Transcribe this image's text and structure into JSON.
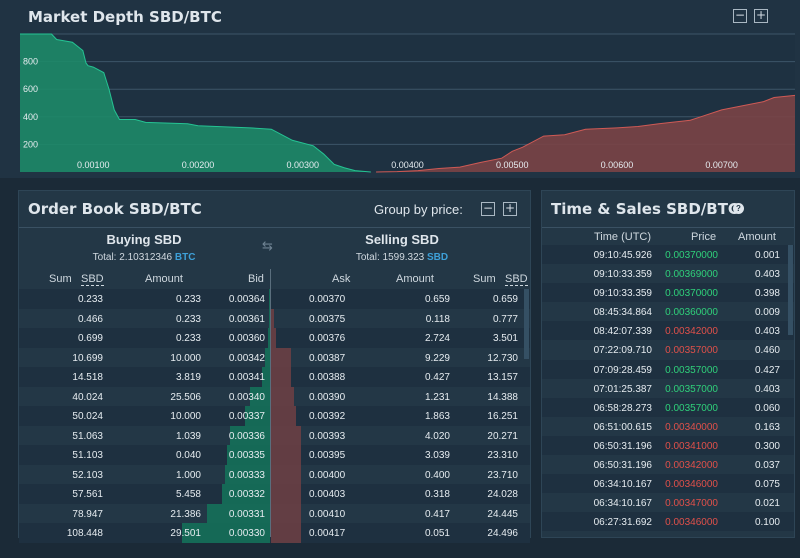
{
  "depth": {
    "title": "Market Depth SBD/BTC",
    "y_ticks": [
      "800",
      "600",
      "400",
      "200"
    ],
    "x_ticks": [
      "0.00100",
      "0.00200",
      "0.00300",
      "0.00400",
      "0.00500",
      "0.00600",
      "0.00700"
    ],
    "colors": {
      "bid": "#1d8a68",
      "ask": "#7a4446",
      "bid_line": "#25c393",
      "ask_line": "#cf5a55"
    },
    "chart_data": {
      "type": "area",
      "xlim": [
        0.0003,
        0.0077
      ],
      "ylim": [
        0,
        1000
      ],
      "series": [
        {
          "name": "Bids",
          "points": [
            [
              0.0003,
              1000
            ],
            [
              0.0006,
              1000
            ],
            [
              0.00065,
              960
            ],
            [
              0.0008,
              940
            ],
            [
              0.00085,
              910
            ],
            [
              0.0009,
              880
            ],
            [
              0.00093,
              790
            ],
            [
              0.00095,
              770
            ],
            [
              0.001,
              760
            ],
            [
              0.0011,
              720
            ],
            [
              0.00115,
              600
            ],
            [
              0.0012,
              450
            ],
            [
              0.00125,
              380
            ],
            [
              0.0014,
              380
            ],
            [
              0.0015,
              360
            ],
            [
              0.0019,
              350
            ],
            [
              0.002,
              335
            ],
            [
              0.0025,
              320
            ],
            [
              0.0027,
              310
            ],
            [
              0.0029,
              230
            ],
            [
              0.0031,
              190
            ],
            [
              0.0032,
              130
            ],
            [
              0.0033,
              55
            ],
            [
              0.0034,
              30
            ],
            [
              0.0035,
              10
            ],
            [
              0.00365,
              0
            ]
          ]
        },
        {
          "name": "Asks",
          "points": [
            [
              0.0037,
              0
            ],
            [
              0.0039,
              3
            ],
            [
              0.0041,
              10
            ],
            [
              0.0043,
              25
            ],
            [
              0.0045,
              35
            ],
            [
              0.0047,
              70
            ],
            [
              0.0049,
              100
            ],
            [
              0.005,
              150
            ],
            [
              0.0051,
              180
            ],
            [
              0.0053,
              260
            ],
            [
              0.0055,
              270
            ],
            [
              0.0057,
              310
            ],
            [
              0.006,
              320
            ],
            [
              0.0062,
              330
            ],
            [
              0.0064,
              350
            ],
            [
              0.0067,
              375
            ],
            [
              0.0068,
              400
            ],
            [
              0.007,
              450
            ],
            [
              0.0072,
              480
            ],
            [
              0.0074,
              510
            ],
            [
              0.0075,
              540
            ],
            [
              0.0077,
              555
            ]
          ]
        }
      ]
    }
  },
  "orderbook": {
    "title": "Order Book SBD/BTC",
    "group_label": "Group by price:",
    "buy": {
      "heading": "Buying SBD",
      "total_label": "Total: 2.10312346",
      "total_unit": "BTC"
    },
    "sell": {
      "heading": "Selling SBD",
      "total_label": "Total: 1599.323",
      "total_unit": "SBD"
    },
    "cols": {
      "sum": "Sum",
      "sbd": "SBD",
      "amount": "Amount",
      "bid": "Bid",
      "ask": "Ask"
    },
    "bids": [
      {
        "sum": "0.233",
        "amount": "0.233",
        "price": "0.00364",
        "depth": 0.002
      },
      {
        "sum": "0.466",
        "amount": "0.233",
        "price": "0.00361",
        "depth": 0.004
      },
      {
        "sum": "0.699",
        "amount": "0.233",
        "price": "0.00360",
        "depth": 0.006
      },
      {
        "sum": "10.699",
        "amount": "10.000",
        "price": "0.00342",
        "depth": 0.02
      },
      {
        "sum": "14.518",
        "amount": "3.819",
        "price": "0.00341",
        "depth": 0.03
      },
      {
        "sum": "40.024",
        "amount": "25.506",
        "price": "0.00340",
        "depth": 0.08
      },
      {
        "sum": "50.024",
        "amount": "10.000",
        "price": "0.00337",
        "depth": 0.1
      },
      {
        "sum": "51.063",
        "amount": "1.039",
        "price": "0.00336",
        "depth": 0.16
      },
      {
        "sum": "51.103",
        "amount": "0.040",
        "price": "0.00335",
        "depth": 0.17
      },
      {
        "sum": "52.103",
        "amount": "1.000",
        "price": "0.00333",
        "depth": 0.18
      },
      {
        "sum": "57.561",
        "amount": "5.458",
        "price": "0.00332",
        "depth": 0.19
      },
      {
        "sum": "78.947",
        "amount": "21.386",
        "price": "0.00331",
        "depth": 0.25
      },
      {
        "sum": "108.448",
        "amount": "29.501",
        "price": "0.00330",
        "depth": 0.35
      }
    ],
    "asks": [
      {
        "price": "0.00370",
        "amount": "0.659",
        "sum": "0.659",
        "depth": 0.0
      },
      {
        "price": "0.00375",
        "amount": "0.118",
        "sum": "0.777",
        "depth": 0.01
      },
      {
        "price": "0.00376",
        "amount": "2.724",
        "sum": "3.501",
        "depth": 0.02
      },
      {
        "price": "0.00387",
        "amount": "9.229",
        "sum": "12.730",
        "depth": 0.08
      },
      {
        "price": "0.00388",
        "amount": "0.427",
        "sum": "13.157",
        "depth": 0.08
      },
      {
        "price": "0.00390",
        "amount": "1.231",
        "sum": "14.388",
        "depth": 0.09
      },
      {
        "price": "0.00392",
        "amount": "1.863",
        "sum": "16.251",
        "depth": 0.1
      },
      {
        "price": "0.00393",
        "amount": "4.020",
        "sum": "20.271",
        "depth": 0.12
      },
      {
        "price": "0.00395",
        "amount": "3.039",
        "sum": "23.310",
        "depth": 0.12
      },
      {
        "price": "0.00400",
        "amount": "0.400",
        "sum": "23.710",
        "depth": 0.12
      },
      {
        "price": "0.00403",
        "amount": "0.318",
        "sum": "24.028",
        "depth": 0.12
      },
      {
        "price": "0.00410",
        "amount": "0.417",
        "sum": "24.445",
        "depth": 0.12
      },
      {
        "price": "0.00417",
        "amount": "0.051",
        "sum": "24.496",
        "depth": 0.12
      }
    ]
  },
  "sales": {
    "title": "Time & Sales SBD/BTC",
    "cols": {
      "time": "Time (UTC)",
      "price": "Price",
      "amount": "Amount"
    },
    "rows": [
      {
        "time": "09:10:45.926",
        "price": "0.00370000",
        "amount": "0.001",
        "dir": "up"
      },
      {
        "time": "09:10:33.359",
        "price": "0.00369000",
        "amount": "0.403",
        "dir": "up"
      },
      {
        "time": "09:10:33.359",
        "price": "0.00370000",
        "amount": "0.398",
        "dir": "up"
      },
      {
        "time": "08:45:34.864",
        "price": "0.00360000",
        "amount": "0.009",
        "dir": "up"
      },
      {
        "time": "08:42:07.339",
        "price": "0.00342000",
        "amount": "0.403",
        "dir": "down"
      },
      {
        "time": "07:22:09.710",
        "price": "0.00357000",
        "amount": "0.460",
        "dir": "down"
      },
      {
        "time": "07:09:28.459",
        "price": "0.00357000",
        "amount": "0.427",
        "dir": "up"
      },
      {
        "time": "07:01:25.387",
        "price": "0.00357000",
        "amount": "0.403",
        "dir": "up"
      },
      {
        "time": "06:58:28.273",
        "price": "0.00357000",
        "amount": "0.060",
        "dir": "up"
      },
      {
        "time": "06:51:00.615",
        "price": "0.00340000",
        "amount": "0.163",
        "dir": "down"
      },
      {
        "time": "06:50:31.196",
        "price": "0.00341000",
        "amount": "0.300",
        "dir": "down"
      },
      {
        "time": "06:50:31.196",
        "price": "0.00342000",
        "amount": "0.037",
        "dir": "down"
      },
      {
        "time": "06:34:10.167",
        "price": "0.00346000",
        "amount": "0.075",
        "dir": "down"
      },
      {
        "time": "06:34:10.167",
        "price": "0.00347000",
        "amount": "0.021",
        "dir": "down"
      },
      {
        "time": "06:27:31.692",
        "price": "0.00346000",
        "amount": "0.100",
        "dir": "down"
      }
    ]
  }
}
